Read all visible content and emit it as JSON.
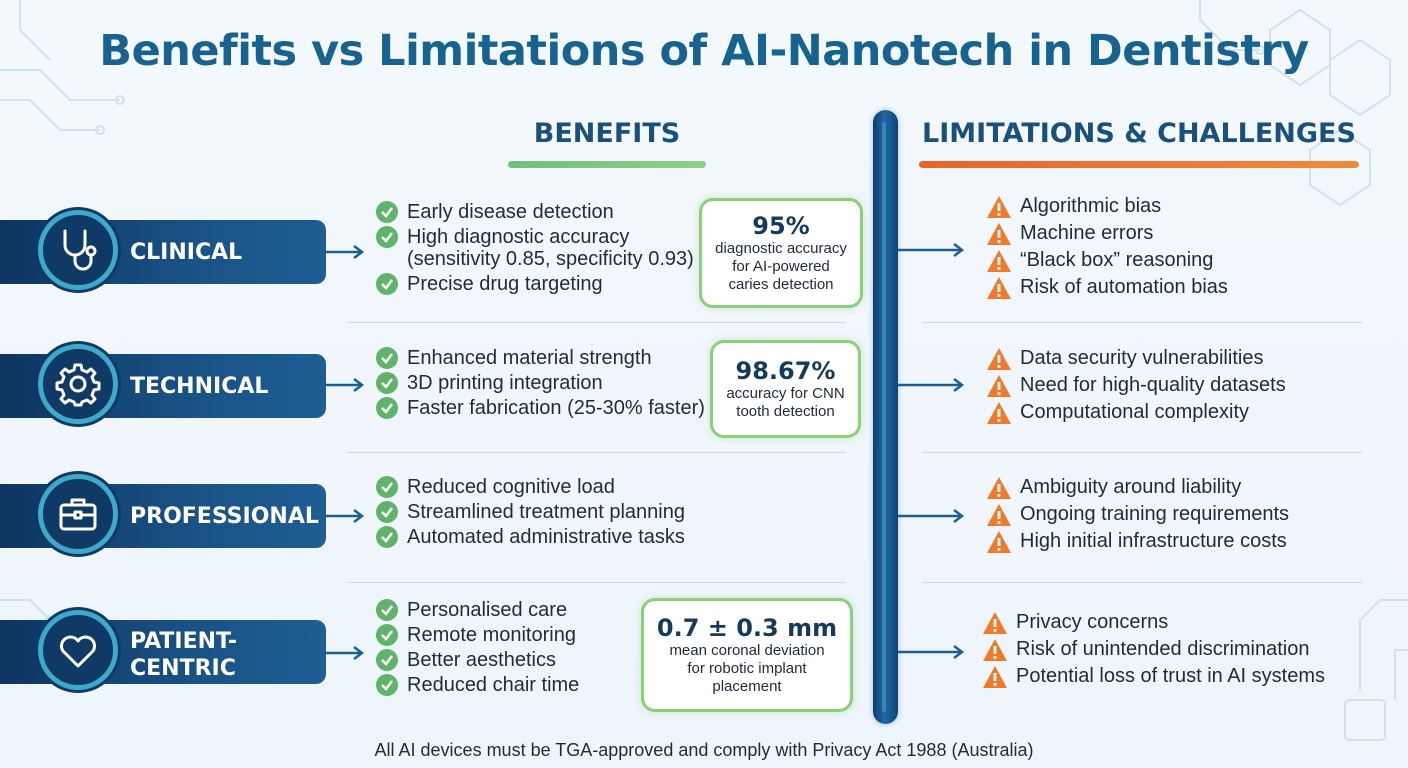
{
  "title": "Benefits vs Limitations of AI-Nanotech in Dentistry",
  "benefits_header": "BENEFITS",
  "limitations_header": "LIMITATIONS & CHALLENGES",
  "colors": {
    "title": "#17628f",
    "benefits_bar": "#7cc576",
    "limitations_bar": "#e8632b",
    "check": "#5fb36a",
    "warning": "#f07a2a",
    "banner": "#1a5286"
  },
  "categories": [
    {
      "label": "CLINICAL",
      "icon": "stethoscope-icon",
      "benefits": [
        "Early disease detection",
        "High diagnostic accuracy\n(sensitivity 0.85, specificity 0.93)",
        "Precise drug targeting"
      ],
      "stat": {
        "value": "95%",
        "text": "diagnostic accuracy\nfor AI-powered\ncaries detection"
      },
      "limitations": [
        "Algorithmic bias",
        "Machine errors",
        "“Black box” reasoning",
        "Risk of automation bias"
      ]
    },
    {
      "label": "TECHNICAL",
      "icon": "gear-icon",
      "benefits": [
        "Enhanced material strength",
        "3D printing integration",
        "Faster fabrication (25-30% faster)"
      ],
      "stat": {
        "value": "98.67%",
        "text": "accuracy for CNN\ntooth detection"
      },
      "limitations": [
        "Data security vulnerabilities",
        "Need for high-quality datasets",
        "Computational complexity"
      ]
    },
    {
      "label": "PROFESSIONAL",
      "icon": "briefcase-icon",
      "benefits": [
        "Reduced cognitive load",
        "Streamlined treatment planning",
        "Automated administrative tasks"
      ],
      "limitations": [
        "Ambiguity around liability",
        "Ongoing training requirements",
        "High initial infrastructure costs"
      ]
    },
    {
      "label": "PATIENT-\nCENTRIC",
      "icon": "heart-icon",
      "benefits": [
        "Personalised care",
        "Remote monitoring",
        "Better aesthetics",
        "Reduced chair time"
      ],
      "stat": {
        "value": "0.7 ± 0.3 mm",
        "text": "mean coronal deviation\nfor robotic implant\nplacement"
      },
      "limitations": [
        "Privacy concerns",
        "Risk of unintended discrimination",
        "Potential loss of trust in AI systems"
      ]
    }
  ],
  "footer": "All AI devices must be TGA-approved and comply with Privacy Act 1988 (Australia)"
}
